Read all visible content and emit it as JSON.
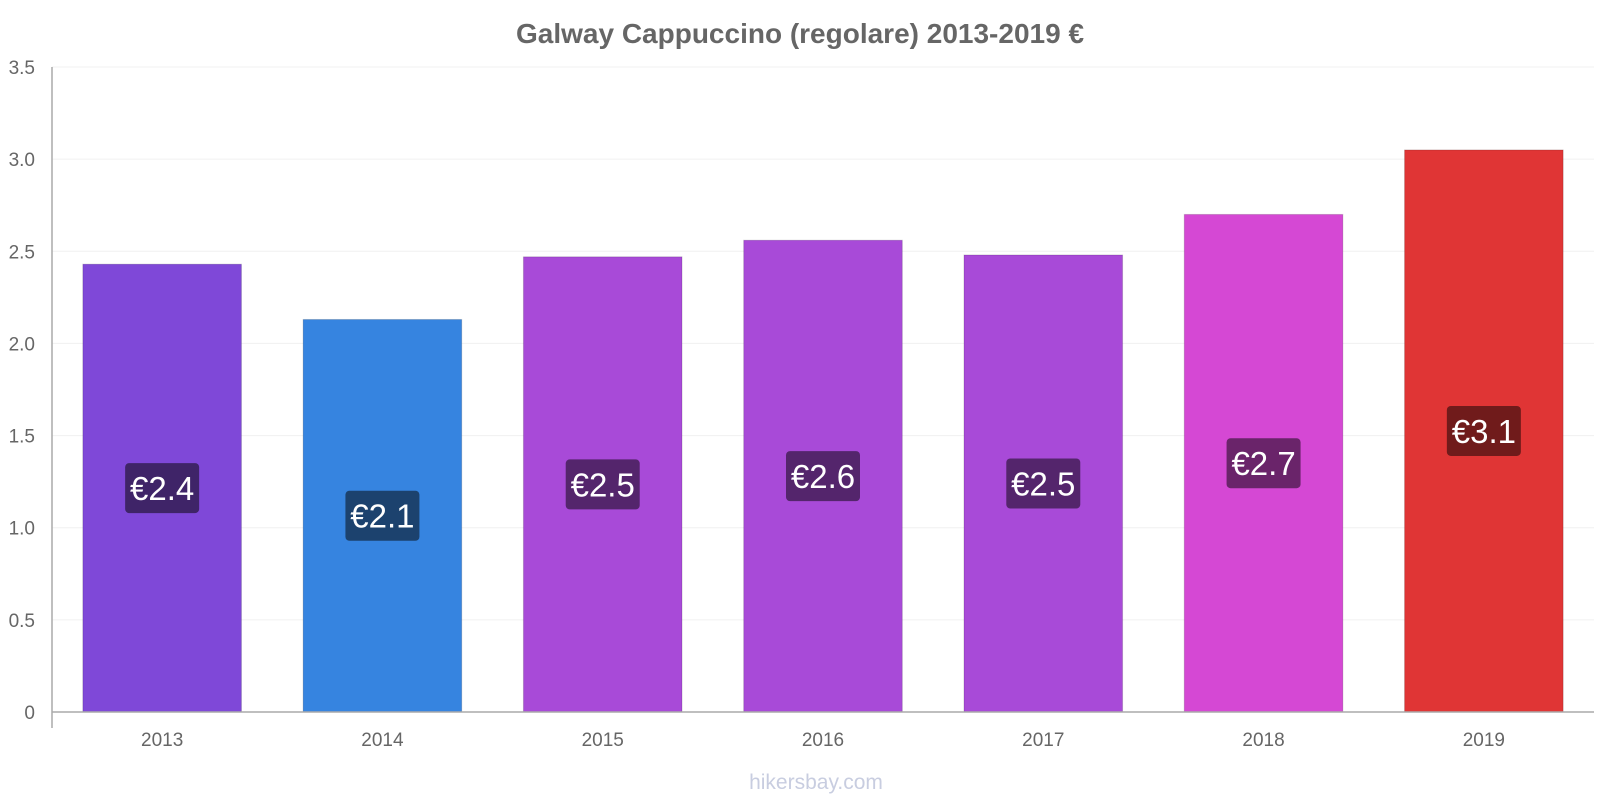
{
  "chart_data": {
    "type": "bar",
    "title": "Galway Cappuccino (regolare) 2013-2019 €",
    "categories": [
      "2013",
      "2014",
      "2015",
      "2016",
      "2017",
      "2018",
      "2019"
    ],
    "values": [
      2.43,
      2.13,
      2.47,
      2.56,
      2.48,
      2.7,
      3.05
    ],
    "data_labels": [
      "€2.4",
      "€2.1",
      "€2.5",
      "€2.6",
      "€2.5",
      "€2.7",
      "€3.1"
    ],
    "bar_colors": [
      "#7f48d8",
      "#3684e0",
      "#a84ad8",
      "#a84ad8",
      "#a84ad8",
      "#d548d4",
      "#e03535"
    ],
    "label_box_colors": [
      "#3f2468",
      "#1c426e",
      "#54256c",
      "#54256c",
      "#54256c",
      "#6a246a",
      "#701b1b"
    ],
    "y_ticks": [
      "0",
      "0.5",
      "1.0",
      "1.5",
      "2.0",
      "2.5",
      "3.0",
      "3.5"
    ],
    "ylim": [
      0,
      3.5
    ],
    "xlabel": "",
    "ylabel": "",
    "grid": true,
    "legend": "none"
  },
  "footer": {
    "credit": "hikersbay.com"
  }
}
